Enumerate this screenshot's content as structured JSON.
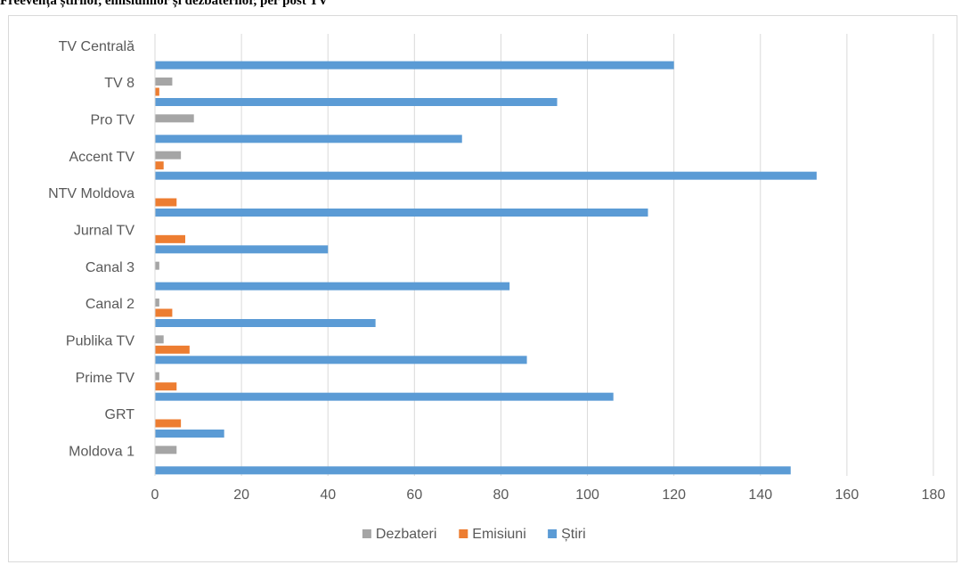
{
  "title": "Freevența știrilor, emisiunilor și dezbaterilor, per post TV",
  "chart_data": {
    "type": "bar",
    "orientation": "horizontal",
    "categories": [
      "TV Centrală",
      "TV 8",
      "Pro TV",
      "Accent TV",
      "NTV Moldova",
      "Jurnal TV",
      "Canal 3",
      "Canal 2",
      "Publika TV",
      "Prime TV",
      "GRT",
      "Moldova 1"
    ],
    "series": [
      {
        "name": "Dezbateri",
        "color": "#a5a5a5",
        "values": [
          0,
          4,
          9,
          6,
          0,
          0,
          1,
          1,
          2,
          1,
          0,
          5
        ]
      },
      {
        "name": "Emisiuni",
        "color": "#ed7d31",
        "values": [
          0,
          1,
          0,
          2,
          5,
          7,
          0,
          4,
          8,
          5,
          6,
          0
        ]
      },
      {
        "name": "Știri",
        "color": "#5b9bd5",
        "values": [
          120,
          93,
          71,
          153,
          114,
          40,
          82,
          51,
          86,
          106,
          16,
          147
        ]
      }
    ],
    "xlim": [
      0,
      180
    ],
    "ticks": [
      0,
      20,
      40,
      60,
      80,
      100,
      120,
      140,
      160,
      180
    ],
    "grid": true,
    "legend": "bottom"
  }
}
